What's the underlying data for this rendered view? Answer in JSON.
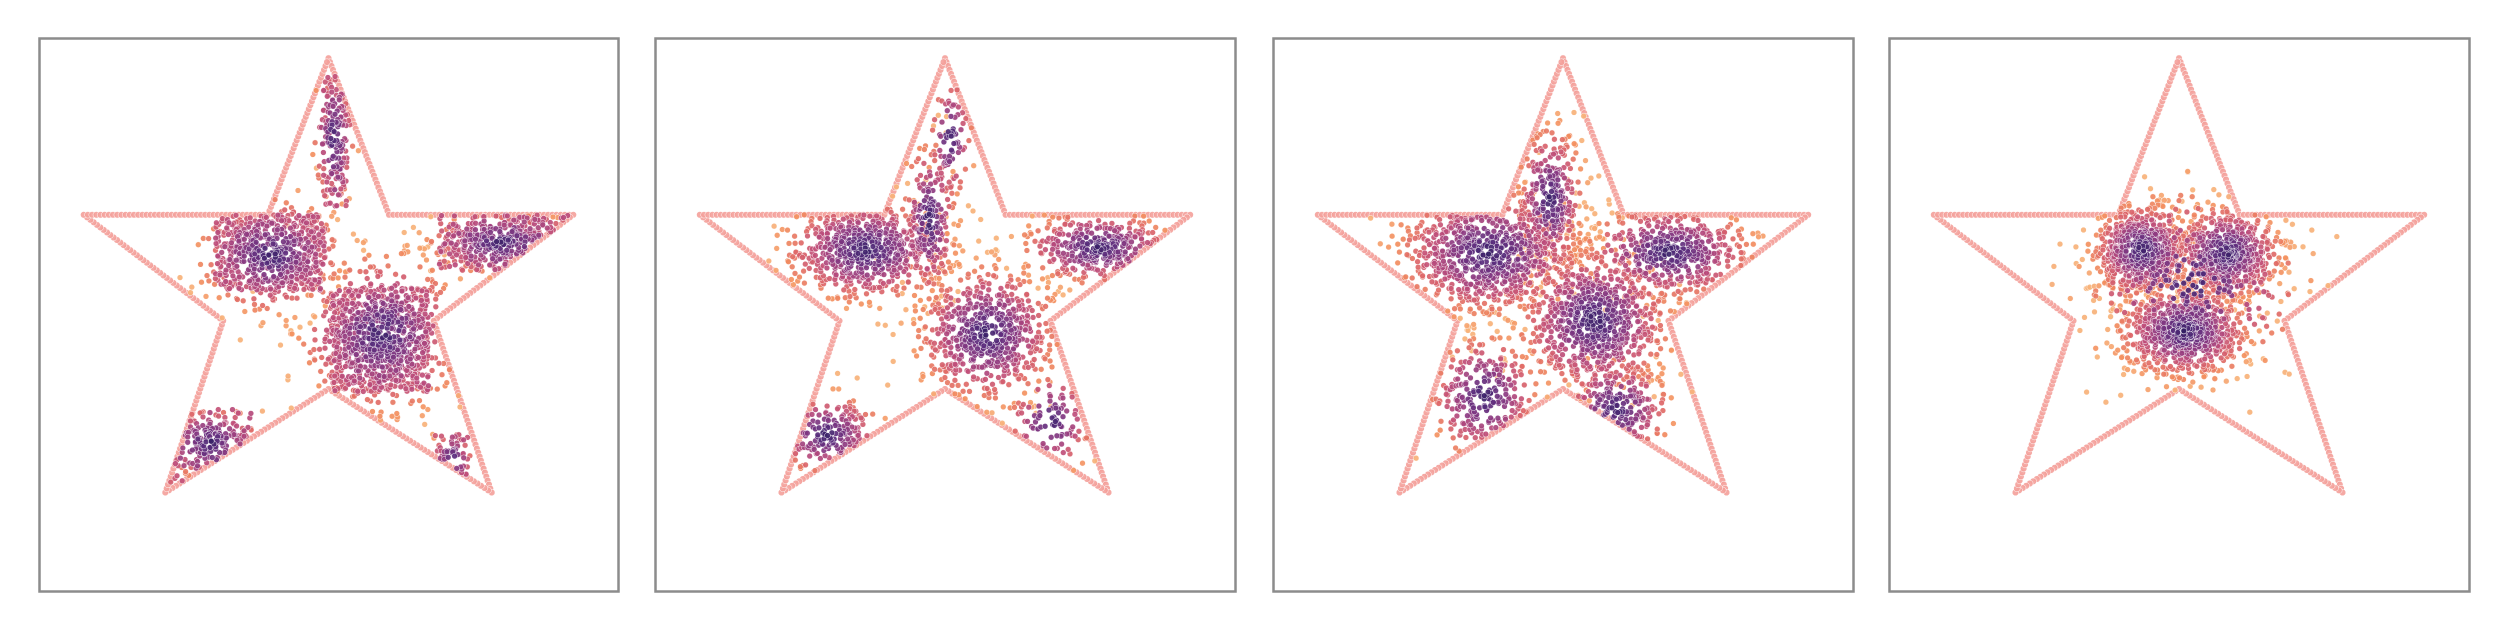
{
  "figure": {
    "panel_count": 4,
    "background": "#ffffff",
    "frame_color": "#8c8c8c",
    "boundary_color": "#f4a09a",
    "colormap": [
      "#2b1b5e",
      "#5a2d7d",
      "#8a3a82",
      "#bd4d7b",
      "#df6968",
      "#f38f5f",
      "#f7b27a"
    ]
  },
  "chart_data": [
    {
      "type": "scatter",
      "title": "",
      "xlabel": "",
      "ylabel": "",
      "grid": false,
      "xlim": [
        -1.1,
        1.1
      ],
      "ylim": [
        -1.17,
        1.02
      ],
      "boundary": {
        "shape": "five-pointed star",
        "vertices": [
          [
            0,
            0.94
          ],
          [
            0.23,
            0.32
          ],
          [
            0.93,
            0.32
          ],
          [
            0.4,
            -0.1
          ],
          [
            0.62,
            -0.78
          ],
          [
            0,
            -0.37
          ],
          [
            -0.62,
            -0.78
          ],
          [
            -0.4,
            -0.1
          ],
          [
            -0.93,
            0.32
          ],
          [
            -0.23,
            0.32
          ]
        ]
      },
      "series": [
        {
          "values": {
            "clusters": [
              {
                "cx": -0.22,
                "cy": 0.16,
                "sx": 0.13,
                "sy": 0.11,
                "n": 360
              },
              {
                "cx": 0.2,
                "cy": -0.15,
                "sx": 0.15,
                "sy": 0.15,
                "n": 520
              },
              {
                "cx": 0.65,
                "cy": 0.21,
                "sx": 0.13,
                "sy": 0.06,
                "n": 200
              },
              {
                "cx": -0.45,
                "cy": -0.58,
                "sx": 0.1,
                "sy": 0.07,
                "n": 110
              },
              {
                "cx": 0.02,
                "cy": 0.63,
                "sx": 0.04,
                "sy": 0.13,
                "n": 90
              },
              {
                "cx": 0.47,
                "cy": -0.65,
                "sx": 0.04,
                "sy": 0.06,
                "n": 30
              }
            ],
            "rects": [
              {
                "x": [
                  -0.43,
                  -0.01
                ],
                "y": [
                  0.02,
                  0.32
                ],
                "n": 420
              },
              {
                "x": [
                  0.01,
                  0.38
                ],
                "y": [
                  -0.38,
                  0.03
                ],
                "n": 560
              },
              {
                "x": [
                  0.42,
                  0.93
                ],
                "y": [
                  0.1,
                  0.32
                ],
                "n": 300
              },
              {
                "x": [
                  -0.62,
                  -0.29
                ],
                "y": [
                  -0.74,
                  -0.45
                ],
                "n": 160
              },
              {
                "x": [
                  -0.02,
                  0.07
                ],
                "y": [
                  0.35,
                  0.87
                ],
                "n": 110
              },
              {
                "x": [
                  0.4,
                  0.53
                ],
                "y": [
                  -0.78,
                  -0.55
                ],
                "n": 45
              }
            ]
          }
        }
      ]
    },
    {
      "type": "scatter",
      "title": "",
      "xlabel": "",
      "ylabel": "",
      "grid": false,
      "xlim": [
        -1.1,
        1.1
      ],
      "ylim": [
        -1.17,
        1.02
      ],
      "boundary": {
        "shape": "five-pointed star",
        "vertices": [
          [
            0,
            0.94
          ],
          [
            0.23,
            0.32
          ],
          [
            0.93,
            0.32
          ],
          [
            0.4,
            -0.1
          ],
          [
            0.62,
            -0.78
          ],
          [
            0,
            -0.37
          ],
          [
            -0.62,
            -0.78
          ],
          [
            -0.4,
            -0.1
          ],
          [
            -0.93,
            0.32
          ],
          [
            -0.23,
            0.32
          ]
        ]
      },
      "series": [
        {
          "values": {
            "clusters": [
              {
                "cx": -0.3,
                "cy": 0.18,
                "sx": 0.15,
                "sy": 0.1,
                "n": 650
              },
              {
                "cx": 0.16,
                "cy": -0.15,
                "sx": 0.13,
                "sy": 0.13,
                "n": 650
              },
              {
                "cx": 0.58,
                "cy": 0.19,
                "sx": 0.14,
                "sy": 0.07,
                "n": 350
              },
              {
                "cx": -0.06,
                "cy": 0.3,
                "sx": 0.05,
                "sy": 0.15,
                "n": 200
              },
              {
                "cx": -0.45,
                "cy": -0.55,
                "sx": 0.1,
                "sy": 0.08,
                "n": 160
              },
              {
                "cx": 0.4,
                "cy": -0.5,
                "sx": 0.08,
                "sy": 0.1,
                "n": 90
              },
              {
                "cx": 0.02,
                "cy": 0.62,
                "sx": 0.04,
                "sy": 0.12,
                "n": 80
              }
            ],
            "rects": []
          }
        }
      ]
    },
    {
      "type": "scatter",
      "title": "",
      "xlabel": "",
      "ylabel": "",
      "grid": false,
      "xlim": [
        -1.1,
        1.1
      ],
      "ylim": [
        -1.17,
        1.02
      ],
      "boundary": {
        "shape": "five-pointed star",
        "vertices": [
          [
            0,
            0.94
          ],
          [
            0.23,
            0.32
          ],
          [
            0.93,
            0.32
          ],
          [
            0.4,
            -0.1
          ],
          [
            0.62,
            -0.78
          ],
          [
            0,
            -0.37
          ],
          [
            -0.62,
            -0.78
          ],
          [
            -0.4,
            -0.1
          ],
          [
            -0.93,
            0.32
          ],
          [
            -0.23,
            0.32
          ]
        ]
      },
      "series": [
        {
          "values": {
            "clusters": [
              {
                "cx": -0.28,
                "cy": 0.17,
                "sx": 0.17,
                "sy": 0.12,
                "n": 800
              },
              {
                "cx": 0.12,
                "cy": -0.1,
                "sx": 0.14,
                "sy": 0.14,
                "n": 800
              },
              {
                "cx": 0.4,
                "cy": 0.17,
                "sx": 0.16,
                "sy": 0.09,
                "n": 500
              },
              {
                "cx": -0.05,
                "cy": 0.38,
                "sx": 0.06,
                "sy": 0.14,
                "n": 300
              },
              {
                "cx": -0.3,
                "cy": -0.4,
                "sx": 0.1,
                "sy": 0.12,
                "n": 250
              },
              {
                "cx": 0.2,
                "cy": -0.45,
                "sx": 0.1,
                "sy": 0.1,
                "n": 200
              }
            ],
            "rects": []
          }
        }
      ]
    },
    {
      "type": "scatter",
      "title": "",
      "xlabel": "",
      "ylabel": "",
      "grid": false,
      "xlim": [
        -1.1,
        1.1
      ],
      "ylim": [
        -1.17,
        1.02
      ],
      "boundary": {
        "shape": "five-pointed star",
        "vertices": [
          [
            0,
            0.94
          ],
          [
            0.23,
            0.32
          ],
          [
            0.93,
            0.32
          ],
          [
            0.4,
            -0.1
          ],
          [
            0.62,
            -0.78
          ],
          [
            0,
            -0.37
          ],
          [
            -0.62,
            -0.78
          ],
          [
            -0.4,
            -0.1
          ],
          [
            -0.93,
            0.32
          ],
          [
            -0.23,
            0.32
          ]
        ]
      },
      "series": [
        {
          "values": {
            "clusters": [
              {
                "cx": -0.14,
                "cy": 0.18,
                "sx": 0.09,
                "sy": 0.09,
                "n": 650
              },
              {
                "cx": 0.18,
                "cy": 0.17,
                "sx": 0.1,
                "sy": 0.09,
                "n": 650
              },
              {
                "cx": 0.02,
                "cy": -0.14,
                "sx": 0.12,
                "sy": 0.09,
                "n": 750
              },
              {
                "cx": 0.05,
                "cy": 0.05,
                "sx": 0.2,
                "sy": 0.18,
                "n": 250
              }
            ],
            "rects": []
          }
        }
      ]
    }
  ]
}
